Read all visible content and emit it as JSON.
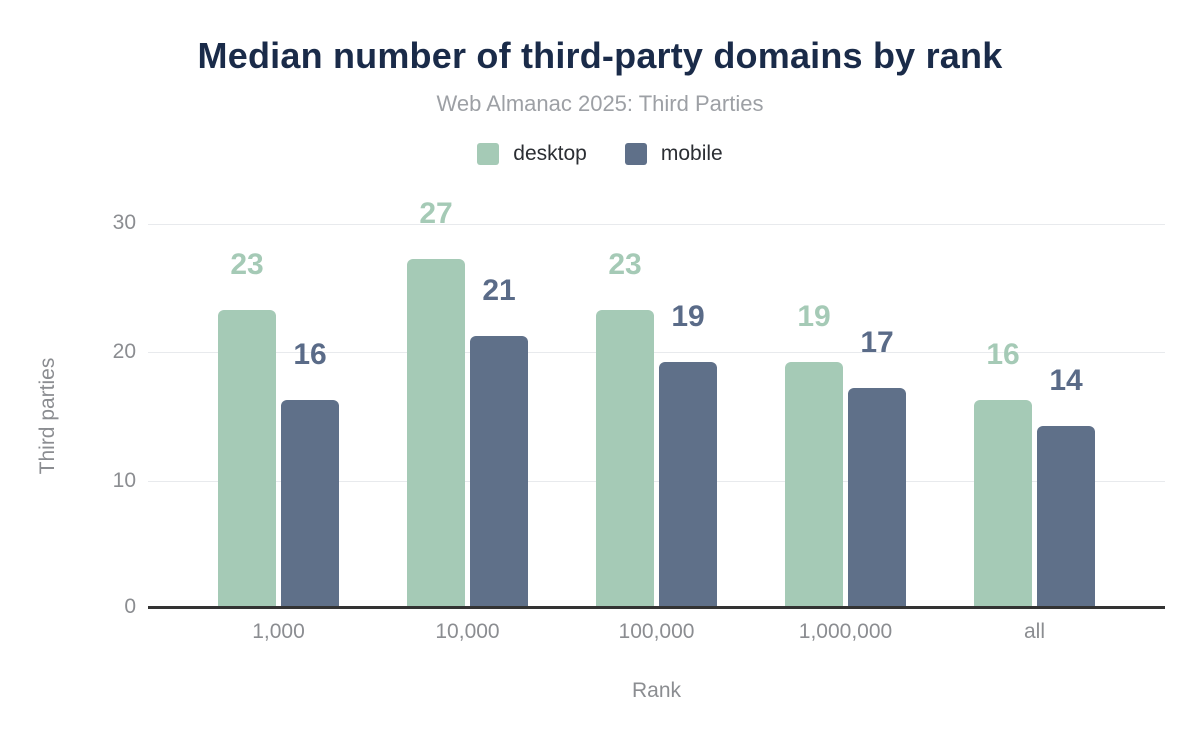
{
  "title": "Median number of third-party domains by rank",
  "subtitle": "Web Almanac 2025: Third Parties",
  "legend": {
    "desktop_label": "desktop",
    "mobile_label": "mobile"
  },
  "colors": {
    "title": "#1a2b49",
    "subtitle": "#9da0a5",
    "desktop": "#a5cab6",
    "mobile": "#5f7089",
    "mobile_label": "#5a6b88",
    "axis_text": "#8b8d91",
    "axis_line": "#333333",
    "gridline": "#e8eaed"
  },
  "chart_data": {
    "type": "bar",
    "title": "Median number of third-party domains by rank",
    "subtitle": "Web Almanac 2025: Third Parties",
    "categories": [
      "1,000",
      "10,000",
      "100,000",
      "1,000,000",
      "all"
    ],
    "series": [
      {
        "name": "desktop",
        "color": "#a5cab6",
        "values": [
          23,
          27,
          23,
          19,
          16
        ]
      },
      {
        "name": "mobile",
        "color": "#5f7089",
        "values": [
          16,
          21,
          19,
          17,
          14
        ]
      }
    ],
    "xlabel": "Rank",
    "ylabel": "Third parties",
    "yticks": [
      "0",
      "10",
      "20",
      "30"
    ],
    "ylim": [
      0,
      33
    ],
    "grid": "horizontal-light",
    "legend_position": "top-center",
    "data_labels": "above-bars-series-colored"
  }
}
